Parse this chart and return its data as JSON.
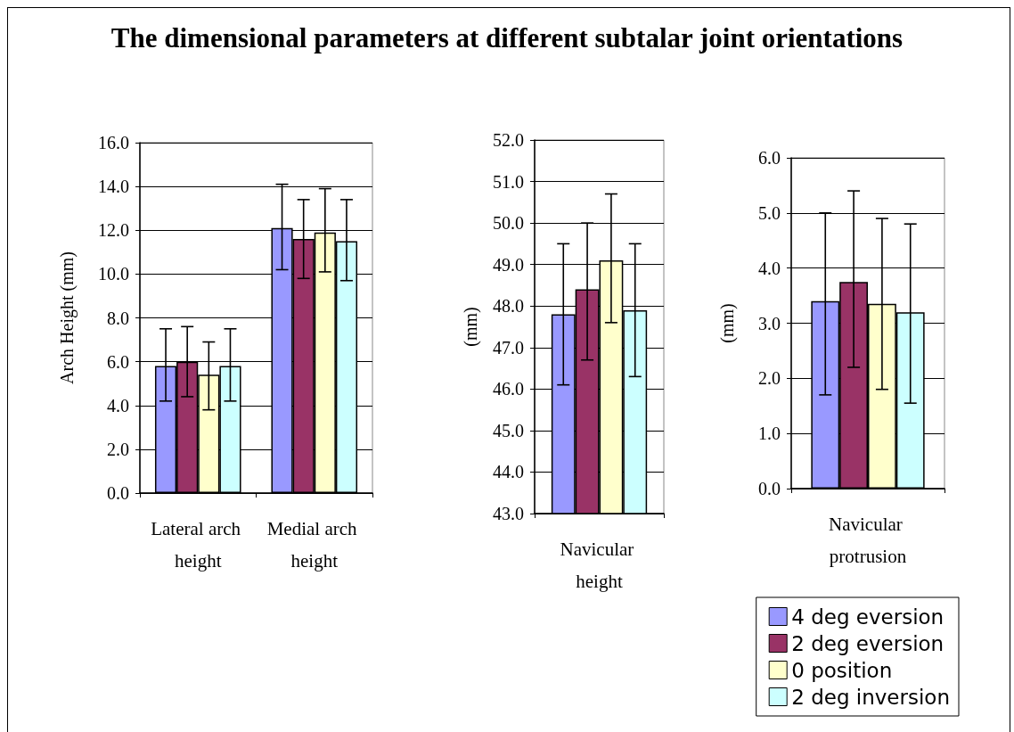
{
  "chart_data": [
    {
      "type": "bar",
      "title": "The dimensional parameters at different subtalar joint orientations",
      "ylabel": "Arch Height (mm)",
      "categories": [
        "Lateral arch height",
        "Medial arch height"
      ],
      "series": [
        {
          "color": "#9999ff",
          "values": [
            5.8,
            12.1
          ],
          "errors": [
            [
              4.2,
              7.5
            ],
            [
              10.2,
              14.1
            ]
          ]
        },
        {
          "color": "#993366",
          "values": [
            6.0,
            11.6
          ],
          "errors": [
            [
              4.4,
              7.6
            ],
            [
              9.8,
              13.4
            ]
          ]
        },
        {
          "color": "#ffffcc",
          "values": [
            5.4,
            11.9
          ],
          "errors": [
            [
              3.8,
              6.9
            ],
            [
              10.1,
              13.9
            ]
          ]
        },
        {
          "color": "#ccffff",
          "values": [
            5.8,
            11.5
          ],
          "errors": [
            [
              4.2,
              7.5
            ],
            [
              9.7,
              13.4
            ]
          ]
        }
      ],
      "ylim": [
        0,
        16
      ],
      "yticks": [
        {
          "value": 0,
          "label": "0.0"
        },
        {
          "value": 2,
          "label": "2.0"
        },
        {
          "value": 4,
          "label": "4.0"
        },
        {
          "value": 6,
          "label": "6.0"
        },
        {
          "value": 8,
          "label": "8.0"
        },
        {
          "value": 10,
          "label": "10.0"
        },
        {
          "value": 12,
          "label": "12.0"
        },
        {
          "value": 14,
          "label": "14.0"
        },
        {
          "value": 16,
          "label": "16.0"
        }
      ],
      "grid": "y"
    },
    {
      "type": "bar",
      "ylabel": "(mm)",
      "categories": [
        "Navicular height"
      ],
      "series": [
        {
          "color": "#9999ff",
          "values": [
            47.8
          ],
          "errors": [
            [
              46.1,
              49.5
            ]
          ]
        },
        {
          "color": "#993366",
          "values": [
            48.4
          ],
          "errors": [
            [
              46.7,
              50.0
            ]
          ]
        },
        {
          "color": "#ffffcc",
          "values": [
            49.1
          ],
          "errors": [
            [
              47.6,
              50.7
            ]
          ]
        },
        {
          "color": "#ccffff",
          "values": [
            47.9
          ],
          "errors": [
            [
              46.3,
              49.5
            ]
          ]
        }
      ],
      "ylim": [
        43,
        52
      ],
      "yticks": [
        {
          "value": 43,
          "label": "43.0"
        },
        {
          "value": 44,
          "label": "44.0"
        },
        {
          "value": 45,
          "label": "45.0"
        },
        {
          "value": 46,
          "label": "46.0"
        },
        {
          "value": 47,
          "label": "47.0"
        },
        {
          "value": 48,
          "label": "48.0"
        },
        {
          "value": 49,
          "label": "49.0"
        },
        {
          "value": 50,
          "label": "50.0"
        },
        {
          "value": 51,
          "label": "51.0"
        },
        {
          "value": 52,
          "label": "52.0"
        }
      ],
      "grid": "y"
    },
    {
      "type": "bar",
      "ylabel": "(mm)",
      "categories": [
        "Navicular protrusion"
      ],
      "series": [
        {
          "name": "4 deg eversion",
          "color": "#9999ff",
          "values": [
            3.4
          ],
          "errors": [
            [
              1.7,
              5.0
            ]
          ]
        },
        {
          "name": "2 deg eversion",
          "color": "#993366",
          "values": [
            3.75
          ],
          "errors": [
            [
              2.2,
              5.4
            ]
          ]
        },
        {
          "name": "0 position",
          "color": "#ffffcc",
          "values": [
            3.35
          ],
          "errors": [
            [
              1.8,
              4.9
            ]
          ]
        },
        {
          "name": "2 deg inversion",
          "color": "#ccffff",
          "values": [
            3.2
          ],
          "errors": [
            [
              1.55,
              4.8
            ]
          ]
        }
      ],
      "ylim": [
        0,
        6
      ],
      "yticks": [
        {
          "value": 0,
          "label": "0.0"
        },
        {
          "value": 1,
          "label": "1.0"
        },
        {
          "value": 2,
          "label": "2.0"
        },
        {
          "value": 3,
          "label": "3.0"
        },
        {
          "value": 4,
          "label": "4.0"
        },
        {
          "value": 5,
          "label": "5.0"
        },
        {
          "value": 6,
          "label": "6.0"
        }
      ],
      "grid": "y",
      "legend": "bottom"
    }
  ]
}
